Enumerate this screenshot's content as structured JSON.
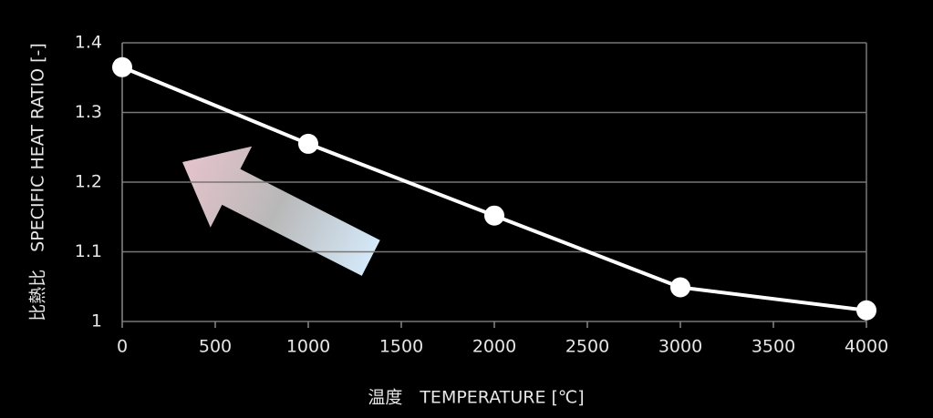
{
  "chart_data": {
    "type": "line",
    "x_label": "温度　TEMPERATURE [℃]",
    "y_label": "比熱比　SPECIFIC HEAT RATIO [-]",
    "x": [
      0,
      1000,
      2000,
      3000,
      4000
    ],
    "values": [
      1.365,
      1.255,
      1.152,
      1.049,
      1.016
    ],
    "color": "#ffffff",
    "xlim": [
      0,
      4000
    ],
    "xticks": [
      0,
      500,
      1000,
      1500,
      2000,
      2500,
      3000,
      3500,
      4000
    ],
    "ylim": [
      1,
      1.4
    ],
    "yticks": [
      1,
      1.1,
      1.2,
      1.3,
      1.4
    ],
    "grid": true
  }
}
